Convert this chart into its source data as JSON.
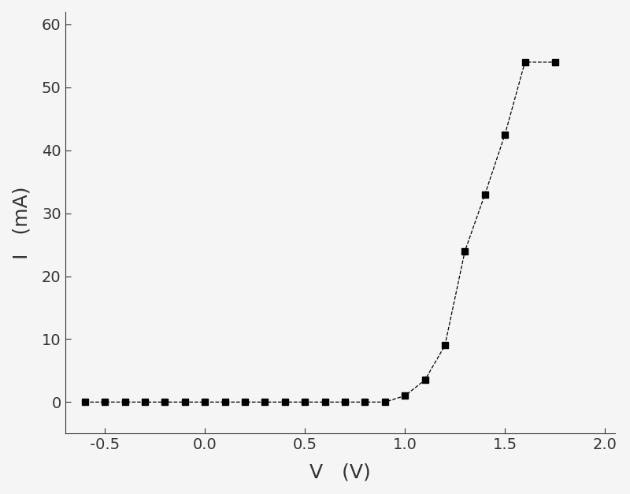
{
  "x": [
    -0.6,
    -0.5,
    -0.4,
    -0.3,
    -0.2,
    -0.1,
    0.0,
    0.1,
    0.2,
    0.3,
    0.4,
    0.5,
    0.6,
    0.7,
    0.8,
    0.9,
    1.0,
    1.1,
    1.2,
    1.3,
    1.4,
    1.5,
    1.6,
    1.75
  ],
  "y": [
    0.0,
    0.0,
    0.0,
    0.0,
    0.0,
    0.0,
    0.0,
    0.0,
    0.0,
    0.0,
    0.0,
    0.0,
    0.0,
    0.0,
    0.0,
    0.0,
    1.0,
    3.5,
    9.0,
    24.0,
    33.0,
    42.5,
    54.0,
    54.0
  ],
  "xlabel": "V   (V)",
  "ylabel": "I   (mA)",
  "xlim": [
    -0.7,
    2.05
  ],
  "ylim": [
    -5,
    62
  ],
  "xticks": [
    -0.5,
    0.0,
    0.5,
    1.0,
    1.5,
    2.0
  ],
  "yticks": [
    0,
    10,
    20,
    30,
    40,
    50,
    60
  ],
  "marker": "s",
  "marker_color": "black",
  "marker_size": 6,
  "line_style": "--",
  "line_color": "black",
  "line_width": 0.9,
  "background_color": "#f5f5f5",
  "xlabel_fontsize": 18,
  "ylabel_fontsize": 18,
  "tick_fontsize": 14,
  "spine_color": "#333333"
}
